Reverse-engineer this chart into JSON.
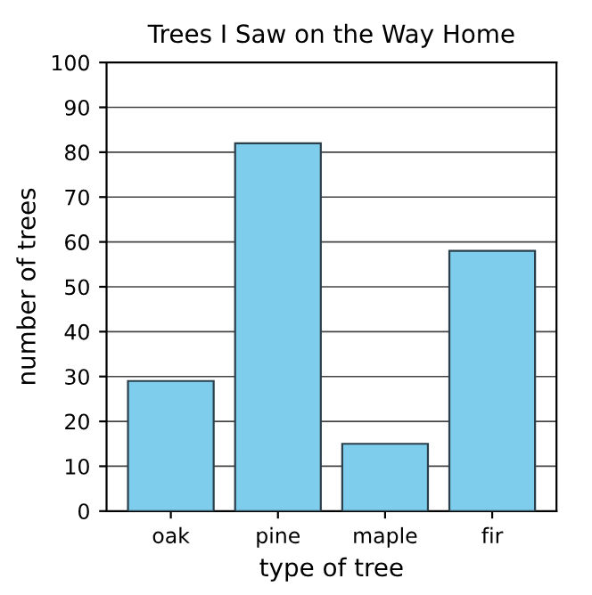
{
  "chart_data": {
    "type": "bar",
    "title": "Trees I Saw on the Way Home",
    "xlabel": "type of tree",
    "ylabel": "number of trees",
    "categories": [
      "oak",
      "pine",
      "maple",
      "fir"
    ],
    "values": [
      29,
      82,
      15,
      58
    ],
    "color": "#7ecdec",
    "ylim": [
      0,
      100
    ],
    "yticks": [
      0,
      10,
      20,
      30,
      40,
      50,
      60,
      70,
      80,
      90,
      100
    ],
    "grid": "y"
  }
}
